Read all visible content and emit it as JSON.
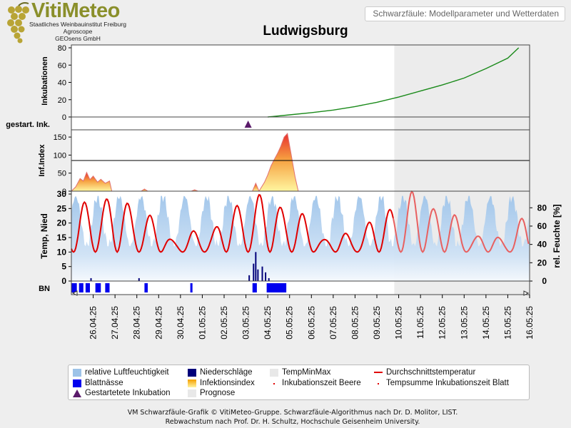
{
  "header": {
    "logo_title": "VitiMeteo",
    "logo_lines": [
      "Staatliches Weinbauinstitut Freiburg",
      "Agroscope",
      "GEOsens GmbH"
    ],
    "subtitle": "Schwarzfäule: Modellparameter und Wetterdaten",
    "station": "Ludwigsburg"
  },
  "footer": {
    "line1": "VM Schwarzfäule-Grafik © VitiMeteo-Gruppe. Schwarzfäule-Algorithmus nach Dr. D. Molitor, LIST.",
    "line2": "Rebwachstum nach Prof. Dr. H. Schultz, Hochschule Geisenheim University."
  },
  "legend": [
    {
      "label": "relative Luftfeuchtigkeit",
      "color": "#9dc3e8",
      "shape": "rect"
    },
    {
      "label": "Niederschläge",
      "color": "#00007a",
      "shape": "rect"
    },
    {
      "label": "TempMinMax",
      "color": "#e8e8e8",
      "shape": "rect"
    },
    {
      "label": "Durchschnittstemperatur",
      "color": "#e00000",
      "shape": "line"
    },
    {
      "label": "Blattnässe",
      "color": "#0000ee",
      "shape": "rect"
    },
    {
      "label": "Infektionsindex",
      "color": "#f5a000",
      "shape": "gradient"
    },
    {
      "label": "Inkubationszeit Beere",
      "color": "#e00000",
      "shape": "dot"
    },
    {
      "label": "Tempsumme Inkubationszeit Blatt",
      "color": "#e00000",
      "shape": "dot"
    },
    {
      "label": "Gestartetete Inkubation",
      "color": "#5a1a6a",
      "shape": "triangle"
    },
    {
      "label": "Prognose",
      "color": "#e8e8e8",
      "shape": "rect"
    }
  ],
  "chart_data": {
    "type": "line",
    "x_start": "25.04.25",
    "x_end": "16.05.25",
    "x_tick_labels": [
      "26.04.25",
      "27.04.25",
      "28.04.25",
      "29.04.25",
      "30.04.25",
      "01.05.25",
      "02.05.25",
      "03.05.25",
      "04.05.25",
      "05.05.25",
      "06.05.25",
      "07.05.25",
      "08.05.25",
      "09.05.25",
      "10.05.25",
      "11.05.25",
      "12.05.25",
      "13.05.25",
      "14.05.25",
      "15.05.25",
      "16.05.25"
    ],
    "forecast_start_day": 14.8,
    "panels": {
      "incubations": {
        "ylabel": "Inkubationen",
        "yticks": [
          0,
          20,
          40,
          60,
          80
        ],
        "ylim": [
          0,
          80
        ],
        "x_days": [
          9.0,
          10.0,
          11.0,
          12.0,
          13.0,
          14.0,
          15.0,
          16.0,
          17.0,
          18.0,
          19.0,
          20.0,
          20.5
        ],
        "values": [
          0,
          2.5,
          5,
          8,
          12,
          17,
          23,
          30,
          37,
          45,
          56,
          68,
          80
        ]
      },
      "started_incubation": {
        "label": "gestart. Ink.",
        "markers_day": [
          8.1
        ]
      },
      "infection_index": {
        "ylabel": "Inf.Index",
        "yticks": [
          0,
          50,
          100,
          150
        ],
        "ylim": [
          0,
          170
        ],
        "threshold": 85,
        "x_days": [
          0.0,
          0.2,
          0.4,
          0.55,
          0.7,
          0.85,
          1.0,
          1.2,
          1.35,
          1.55,
          1.75,
          1.85,
          3.2,
          3.35,
          3.5,
          5.5,
          5.65,
          5.8,
          8.3,
          8.45,
          8.6,
          8.85,
          9.0,
          9.15,
          9.3,
          9.45,
          9.6,
          9.75,
          9.9,
          10.05,
          10.25,
          10.4
        ],
        "values": [
          0,
          12,
          35,
          28,
          52,
          32,
          42,
          25,
          33,
          22,
          28,
          0,
          0,
          6,
          0,
          0,
          4,
          0,
          0,
          22,
          0,
          25,
          45,
          70,
          88,
          105,
          125,
          150,
          160,
          110,
          40,
          0
        ]
      },
      "weather": {
        "ylabel_left": "Temp, Nied",
        "ylabel_right": "rel. Feuchte [%]",
        "yticks_left": [
          0,
          5,
          10,
          15,
          20,
          25,
          30
        ],
        "ylim_left": [
          0,
          30
        ],
        "yticks_right": [
          0,
          20,
          40,
          60,
          80
        ],
        "ylim_right": [
          0,
          95
        ],
        "avg_temp_min": 7,
        "avg_temp_max": 27,
        "humidity_min": 38,
        "humidity_max": 93,
        "precipitation_days": [
          0.9,
          3.1,
          8.15,
          8.35,
          8.45,
          8.55,
          8.75,
          8.9,
          9.05
        ],
        "precipitation_values": [
          1,
          1,
          2,
          6,
          10,
          4,
          5,
          3,
          1
        ]
      },
      "leaf_wetness": {
        "label": "BN",
        "periods_days": [
          [
            0.0,
            0.25
          ],
          [
            0.35,
            0.55
          ],
          [
            0.65,
            0.85
          ],
          [
            1.1,
            1.35
          ],
          [
            1.55,
            1.75
          ],
          [
            3.35,
            3.5
          ],
          [
            5.45,
            5.55
          ],
          [
            8.3,
            8.5
          ],
          [
            8.95,
            9.85
          ]
        ]
      }
    }
  }
}
